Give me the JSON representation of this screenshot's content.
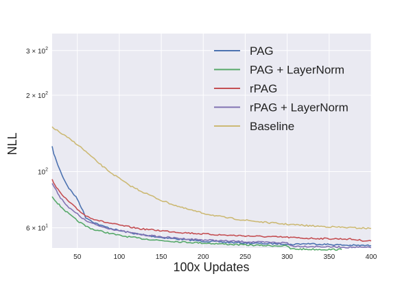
{
  "chart_data": {
    "type": "line",
    "title": "",
    "xlabel": "100x Updates",
    "ylabel": "NLL",
    "y_scale": "log",
    "xlim": [
      20,
      400
    ],
    "ylim": [
      50,
      350
    ],
    "x_ticks": [
      50,
      100,
      150,
      200,
      250,
      300,
      350,
      400
    ],
    "x_tick_labels": [
      "50",
      "100",
      "150",
      "200",
      "250",
      "300",
      "350",
      "400"
    ],
    "y_ticks": [
      300,
      200,
      100,
      60
    ],
    "y_tick_labels": [
      {
        "mantissa": "3 × 10",
        "exp": "2"
      },
      {
        "mantissa": "2 × 10",
        "exp": "2"
      },
      {
        "mantissa": "10",
        "exp": "2"
      },
      {
        "mantissa": "6 × 10",
        "exp": "1"
      }
    ],
    "grid": true,
    "background": "#eaeaf2",
    "legend_position": "top-right",
    "series": [
      {
        "name": "PAG",
        "color": "#4c72b0",
        "x": [
          20,
          22,
          25,
          30,
          35,
          40,
          45,
          50,
          55,
          60,
          70,
          80,
          100,
          125,
          150,
          175,
          200,
          225,
          250,
          275,
          300,
          302,
          306,
          310,
          325,
          350,
          375,
          400
        ],
        "y": [
          125,
          118,
          110,
          100,
          92,
          86,
          82,
          78,
          72,
          66,
          63,
          61,
          58.5,
          56.5,
          55,
          54,
          53.2,
          52.7,
          52.3,
          52,
          51.9,
          51.5,
          51.6,
          51.8,
          52,
          51.6,
          51.2,
          51.1
        ]
      },
      {
        "name": "PAG + LayerNorm",
        "color": "#55a868",
        "x": [
          20,
          25,
          30,
          40,
          50,
          60,
          70,
          80,
          100,
          125,
          150,
          175,
          200,
          225,
          250,
          275,
          300,
          304,
          310,
          325,
          350,
          365
        ],
        "y": [
          80,
          76,
          73,
          68,
          64,
          61,
          59,
          58,
          56,
          54.5,
          53.5,
          52.8,
          52.3,
          51.8,
          51.4,
          51.1,
          50.9,
          49.6,
          49.5,
          49.4,
          49.3,
          49.3
        ]
      },
      {
        "name": "rPAG",
        "color": "#c44e52",
        "x": [
          20,
          25,
          30,
          40,
          50,
          60,
          70,
          80,
          100,
          125,
          150,
          175,
          200,
          225,
          250,
          275,
          300,
          310,
          325,
          350,
          375,
          390,
          400
        ],
        "y": [
          93,
          87,
          82,
          76,
          71,
          67,
          65,
          63.5,
          61.5,
          59.5,
          58.5,
          57.5,
          56.8,
          56.2,
          55.8,
          55.4,
          55.1,
          54.8,
          54.6,
          54.4,
          54.2,
          53.5,
          53.3
        ]
      },
      {
        "name": "rPAG + LayerNorm",
        "color": "#8172b2",
        "x": [
          20,
          25,
          30,
          40,
          50,
          60,
          70,
          80,
          100,
          125,
          150,
          175,
          200,
          225,
          250,
          275,
          300,
          304,
          310,
          325,
          350,
          375,
          400
        ],
        "y": [
          90,
          84,
          79,
          72,
          68,
          64,
          62,
          60.5,
          58.5,
          56.5,
          55.3,
          54.4,
          53.8,
          53.3,
          52.9,
          52.6,
          52.4,
          51.1,
          50.8,
          50.7,
          50.5,
          50.3,
          50.2
        ]
      },
      {
        "name": "Baseline",
        "color": "#ccb974",
        "x": [
          20,
          30,
          40,
          50,
          60,
          70,
          80,
          90,
          100,
          110,
          125,
          150,
          175,
          200,
          225,
          250,
          275,
          300,
          325,
          350,
          375,
          400
        ],
        "y": [
          150,
          142,
          135,
          128,
          120,
          112,
          105,
          99,
          94,
          89,
          84,
          77,
          72,
          68.5,
          66,
          64.3,
          63,
          62,
          61.2,
          60.6,
          60.1,
          59.7
        ]
      }
    ]
  }
}
